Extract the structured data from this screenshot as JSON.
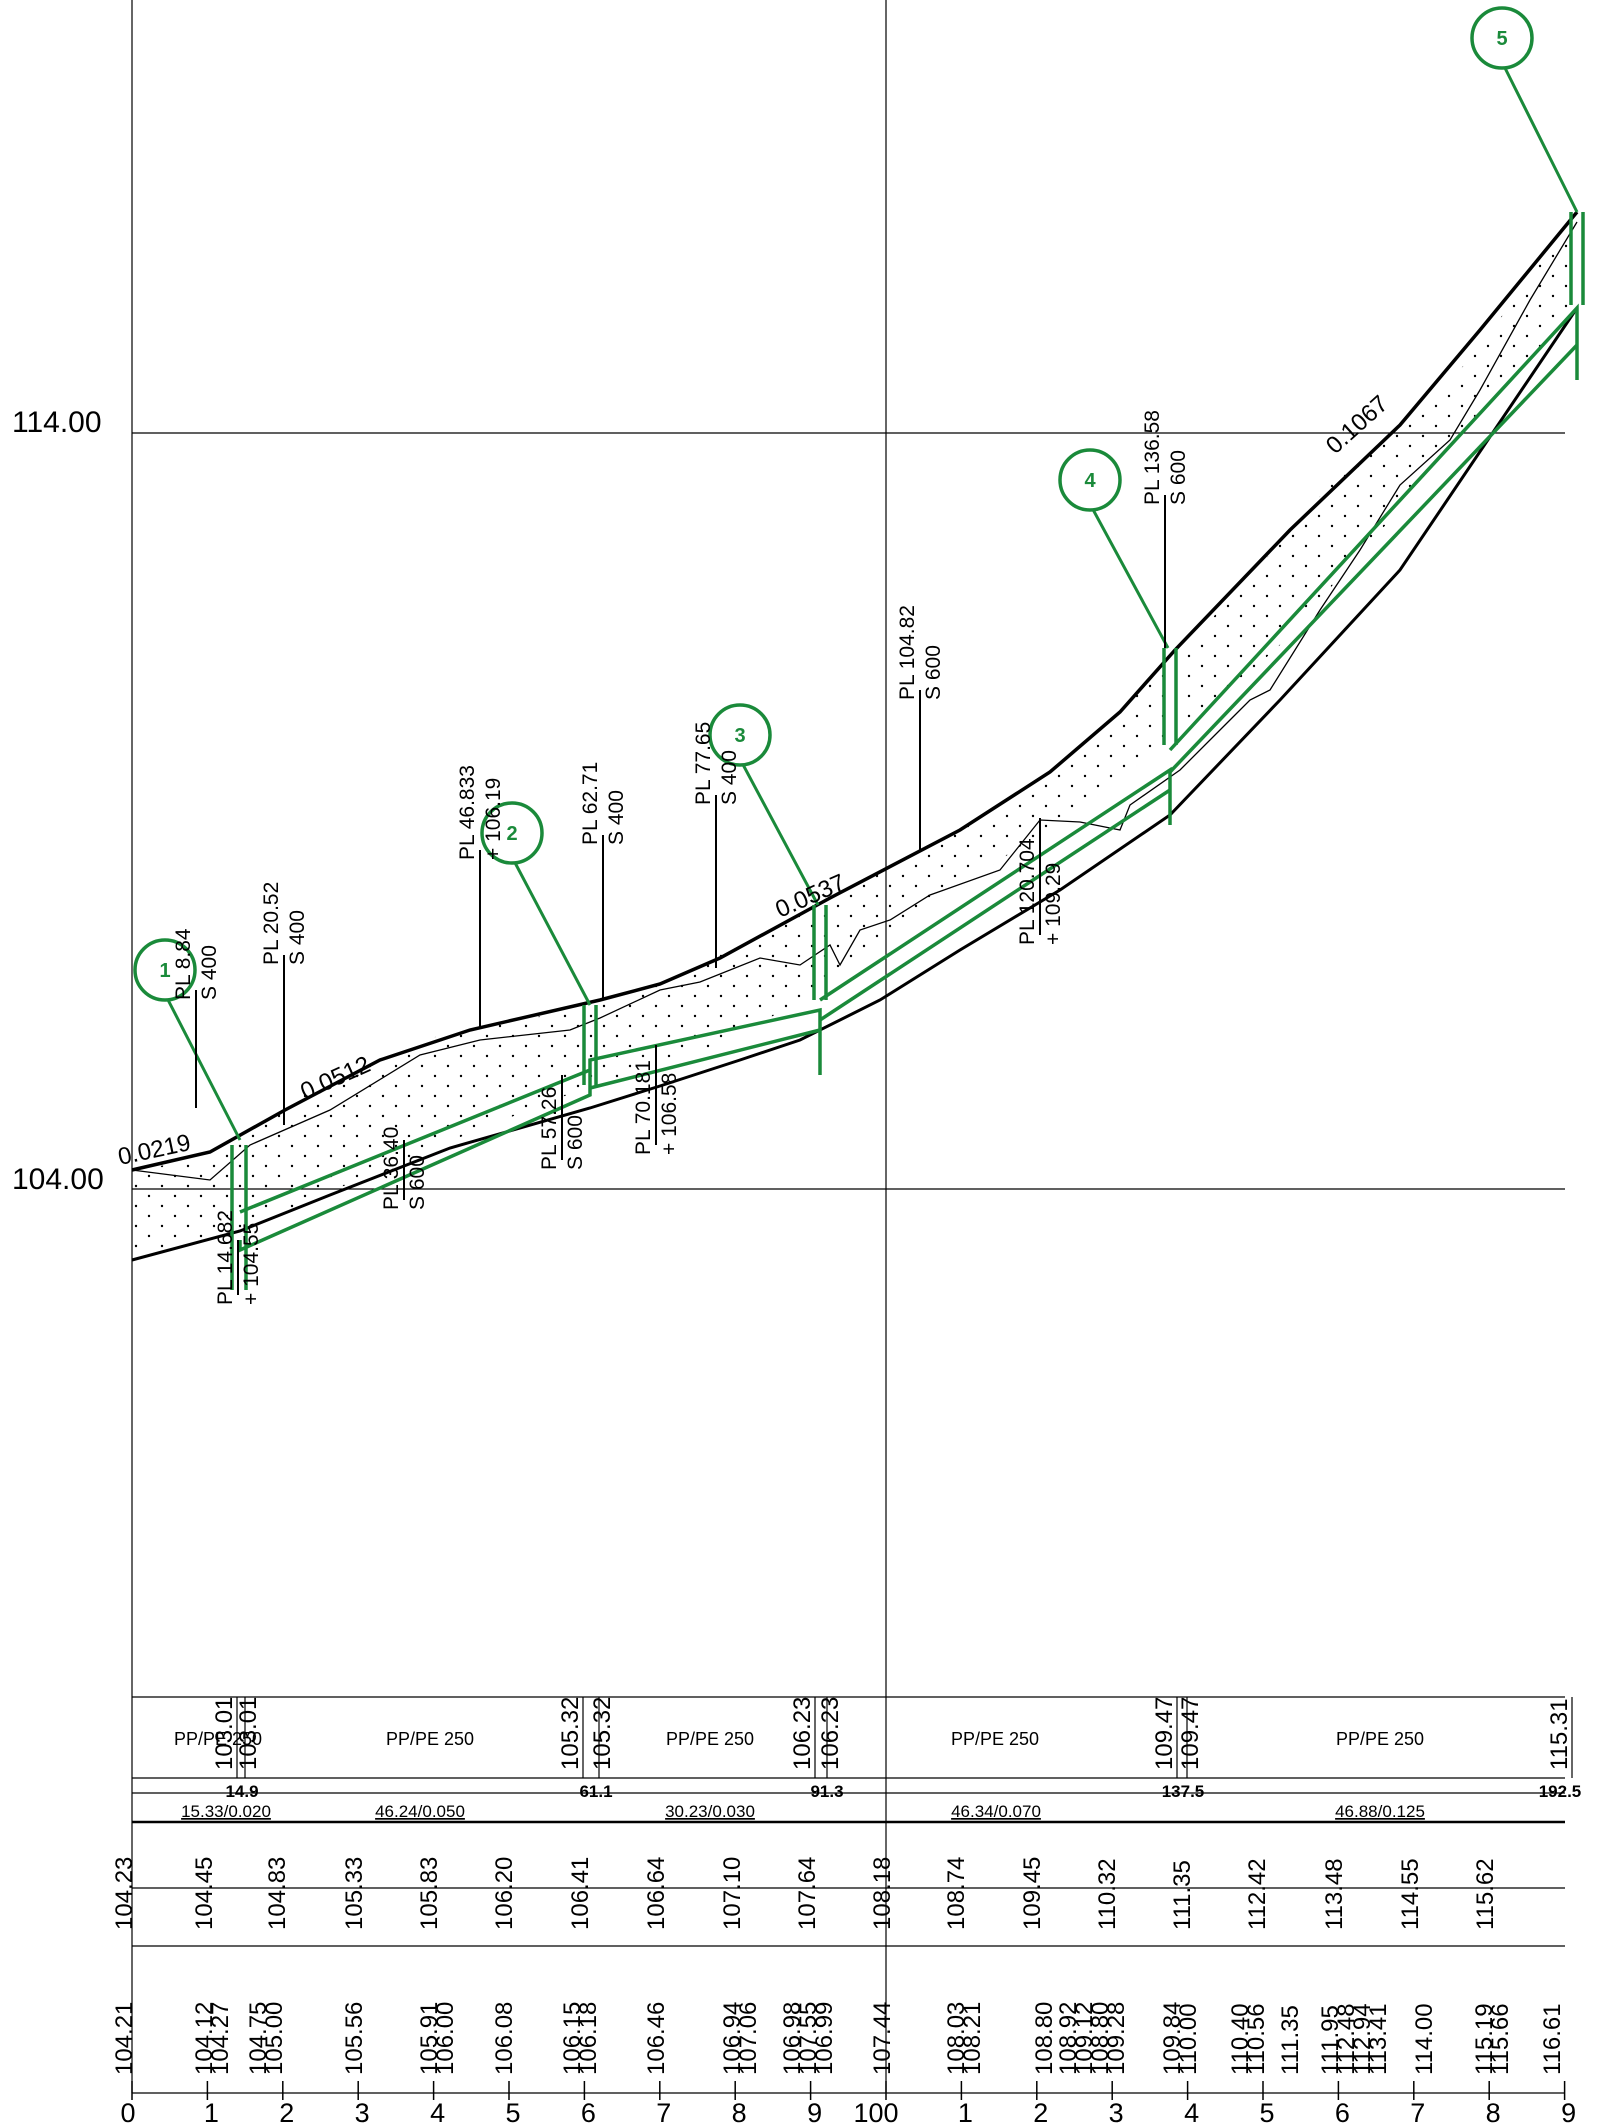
{
  "elevation_labels": [
    "114.00",
    "104.00"
  ],
  "slopes": [
    "0.0219",
    "0.0512",
    "0.0537",
    "0.1067"
  ],
  "markers": [
    "1",
    "2",
    "3",
    "4",
    "5"
  ],
  "structures": [
    {
      "name": "PL 8.84",
      "sub": "S 400"
    },
    {
      "name": "PL 14.682",
      "sub": "+ 104.55"
    },
    {
      "name": "PL 20.52",
      "sub": "S 400"
    },
    {
      "name": "PL 36.40",
      "sub": "S 600"
    },
    {
      "name": "PL 46.833",
      "sub": "+ 106.19"
    },
    {
      "name": "PL 57.26",
      "sub": "S 600"
    },
    {
      "name": "PL 62.71",
      "sub": "S 400"
    },
    {
      "name": "PL 70.181",
      "sub": "+ 106.58"
    },
    {
      "name": "PL 77.65",
      "sub": "S 400"
    },
    {
      "name": "PL 104.82",
      "sub": "S 600"
    },
    {
      "name": "PL 120.704",
      "sub": "+ 109.29"
    },
    {
      "name": "PL 136.58",
      "sub": "S 600"
    }
  ],
  "pipe_table": {
    "materials": [
      "PP/PE 250",
      "PP/PE 250",
      "PP/PE 250",
      "PP/PE 250",
      "PP/PE 250"
    ],
    "invert_levels": [
      "103.01",
      "103.01",
      "105.32",
      "105.32",
      "106.23",
      "106.23",
      "109.47",
      "109.47",
      "115.31"
    ],
    "chainages": [
      "14.9",
      "61.1",
      "91.3",
      "137.5",
      "192.5"
    ],
    "lengths_slopes": [
      "15.33/0.020",
      "46.24/0.050",
      "30.23/0.030",
      "46.34/0.070",
      "46.88/0.125"
    ]
  },
  "design_levels": [
    "104.23",
    "104.45",
    "104.83",
    "105.33",
    "105.83",
    "106.20",
    "106.41",
    "106.64",
    "107.10",
    "107.64",
    "108.18",
    "108.74",
    "109.45",
    "110.32",
    "111.35",
    "112.42",
    "113.48",
    "114.55",
    "115.62"
  ],
  "existing_levels": [
    "104.21",
    "104.12",
    "104.27",
    "104.75",
    "105.00",
    "105.56",
    "105.91",
    "106.00",
    "106.08",
    "106.15",
    "106.18",
    "106.46",
    "106.94",
    "107.06",
    "106.98",
    "107.55",
    "106.99",
    "107.44",
    "108.03",
    "108.21",
    "108.80",
    "108.92",
    "109.12",
    "108.80",
    "109.28",
    "109.84",
    "110.00",
    "110.40",
    "110.56",
    "111.35",
    "111.95",
    "112.48",
    "112.94",
    "113.41",
    "114.00",
    "115.19",
    "115.66",
    "116.61"
  ],
  "axis_labels": [
    "0",
    "1",
    "2",
    "3",
    "4",
    "5",
    "6",
    "7",
    "8",
    "9",
    "100",
    "1",
    "2",
    "3",
    "4",
    "5",
    "6",
    "7",
    "8",
    "9"
  ],
  "colors": {
    "line": "#000000",
    "accent": "#1a8a3a",
    "background": "#ffffff"
  }
}
